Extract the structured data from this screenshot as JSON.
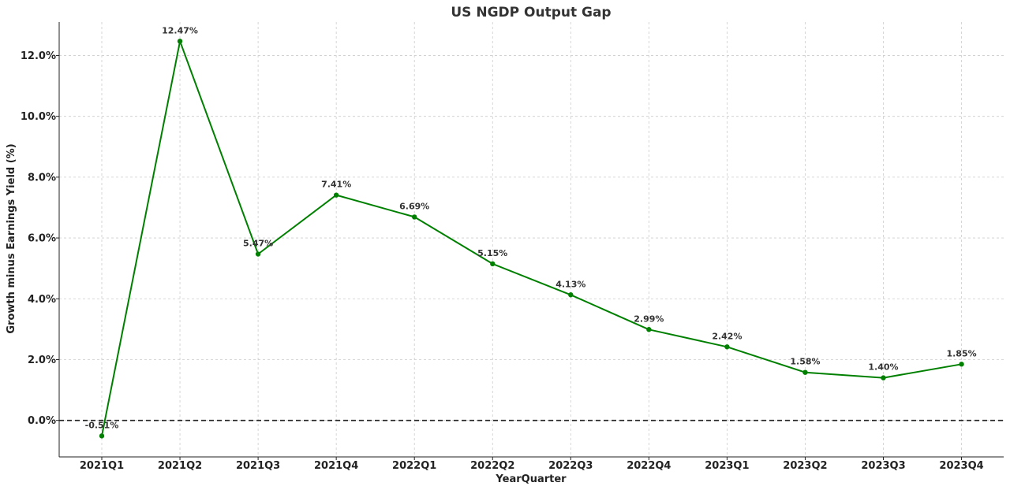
{
  "chart_data": {
    "type": "line",
    "title": "US NGDP Output Gap",
    "xlabel": "YearQuarter",
    "ylabel": "Growth minus Earnings Yield (%)",
    "categories": [
      "2021Q1",
      "2021Q2",
      "2021Q3",
      "2021Q4",
      "2022Q1",
      "2022Q2",
      "2022Q3",
      "2022Q4",
      "2023Q1",
      "2023Q2",
      "2023Q3",
      "2023Q4"
    ],
    "series": [
      {
        "values": [
          -0.51,
          12.47,
          5.47,
          7.41,
          6.69,
          5.15,
          4.13,
          2.99,
          2.42,
          1.58,
          1.4,
          1.85
        ],
        "data_labels": [
          "-0.51%",
          "12.47%",
          "5.47%",
          "7.41%",
          "6.69%",
          "5.15%",
          "4.13%",
          "2.99%",
          "2.42%",
          "1.58%",
          "1.40%",
          "1.85%"
        ],
        "color": "#008000"
      }
    ],
    "yticks": [
      0,
      2,
      4,
      6,
      8,
      10,
      12
    ],
    "ytick_labels": [
      "0.0%",
      "2.0%",
      "4.0%",
      "6.0%",
      "8.0%",
      "10.0%",
      "12.0%"
    ],
    "ylim": [
      -1.2,
      13.1
    ],
    "grid": true,
    "reference_line": {
      "value": 0,
      "style": "dashed",
      "color": "#222222"
    }
  }
}
